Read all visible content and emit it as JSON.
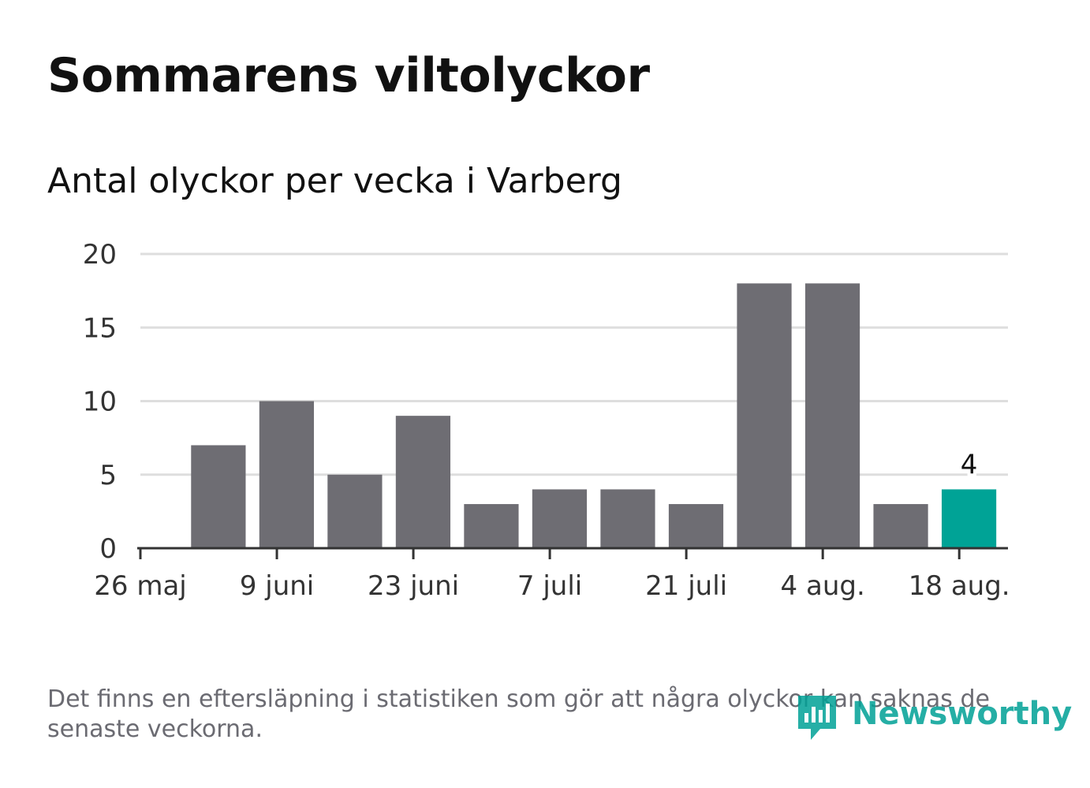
{
  "header": {
    "title": "Sommarens viltolyckor",
    "subtitle": "Antal olyckor per vecka i Varberg"
  },
  "footnote": "Det finns en eftersläpning i statistiken som gör att några olyckor kan saknas de senaste veckorna.",
  "brand": {
    "name": "Newsworthy",
    "icon": "newsworthy-logo-icon",
    "color": "#00a196"
  },
  "chart_data": {
    "type": "bar",
    "title": "Sommarens viltolyckor",
    "subtitle": "Antal olyckor per vecka i Varberg",
    "x": [
      "2024-06-03",
      "2024-06-10",
      "2024-06-17",
      "2024-06-24",
      "2024-07-01",
      "2024-07-08",
      "2024-07-15",
      "2024-07-22",
      "2024-07-29",
      "2024-08-05",
      "2024-08-12",
      "2024-08-19"
    ],
    "values": [
      7,
      10,
      5,
      9,
      3,
      4,
      4,
      3,
      18,
      18,
      3,
      4
    ],
    "x_ticks": [
      {
        "date": "2024-05-26",
        "label": "26 maj"
      },
      {
        "date": "2024-06-09",
        "label": "9 juni"
      },
      {
        "date": "2024-06-23",
        "label": "23 juni"
      },
      {
        "date": "2024-07-07",
        "label": "7 juli"
      },
      {
        "date": "2024-07-21",
        "label": "21 juli"
      },
      {
        "date": "2024-08-04",
        "label": "4 aug."
      },
      {
        "date": "2024-08-18",
        "label": "18 aug."
      }
    ],
    "y_ticks": [
      0,
      5,
      10,
      15,
      20
    ],
    "xlim": [
      "2024-05-26",
      "2024-08-23"
    ],
    "ylim": [
      0,
      20
    ],
    "grid": true,
    "bar_color": "#6e6d73",
    "highlight_color": "#00a396",
    "highlight_index": 11,
    "data_labels": [
      {
        "index": 11,
        "text": "4"
      }
    ]
  }
}
